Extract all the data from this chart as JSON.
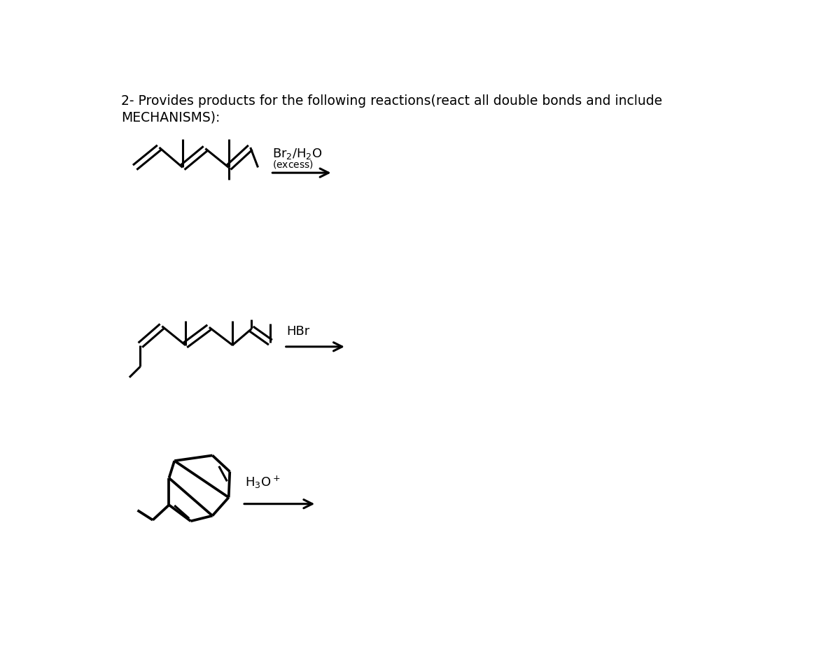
{
  "title_line1": "2- Provides products for the following reactions(react all double bonds and include",
  "title_line2": "MECHANISMS):",
  "title_fontsize": 13.5,
  "bg_color": "#ffffff",
  "text_color": "#000000",
  "arrow_color": "#000000",
  "line_color": "#000000",
  "line_width": 2.2,
  "rxn1_reagent_main": "Br$_2$/H$_2$O",
  "rxn1_reagent_sub": "(excess)",
  "rxn2_reagent": "HBr",
  "rxn3_reagent": "H$_3$O$^+$"
}
